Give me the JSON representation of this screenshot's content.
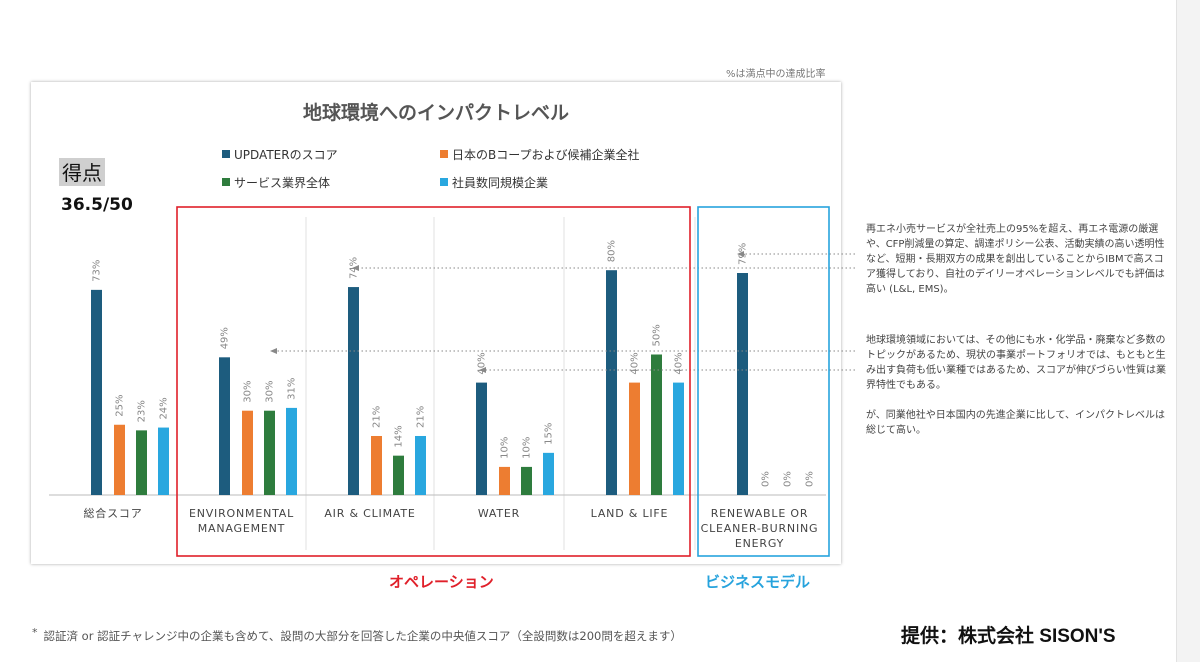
{
  "note_top": "%は満点中の達成比率",
  "chart_data": {
    "type": "bar",
    "title": "地球環境へのインパクトレベル",
    "score_label": "得点",
    "score_value": "36.5/50",
    "categories": [
      [
        "総合スコア"
      ],
      [
        "ENVIRONMENTAL",
        "MANAGEMENT"
      ],
      [
        "AIR & CLIMATE"
      ],
      [
        "WATER"
      ],
      [
        "LAND & LIFE"
      ],
      [
        "RENEWABLE OR",
        "CLEANER-BURNING",
        "ENERGY"
      ]
    ],
    "series": [
      {
        "name": "UPDATERのスコア",
        "color": "#1d5c7e",
        "values": [
          73,
          49,
          74,
          40,
          80,
          79
        ],
        "labels": [
          "73%",
          "49%",
          "74%",
          "40%",
          "80%",
          "79%"
        ]
      },
      {
        "name": "日本のBコープおよび候補企業全社",
        "color": "#ed7d31",
        "values": [
          25,
          30,
          21,
          10,
          40,
          0
        ],
        "labels": [
          "25%",
          "30%",
          "21%",
          "10%",
          "40%",
          "0%"
        ]
      },
      {
        "name": "サービス業界全体",
        "color": "#2e7c3d",
        "values": [
          23,
          30,
          14,
          10,
          50,
          0
        ],
        "labels": [
          "23%",
          "30%",
          "14%",
          "10%",
          "50%",
          "0%"
        ]
      },
      {
        "name": "社員数同規模企業",
        "color": "#29a7df",
        "values": [
          24,
          31,
          21,
          15,
          40,
          0
        ],
        "labels": [
          "24%",
          "31%",
          "21%",
          "15%",
          "40%",
          "0%"
        ]
      }
    ],
    "ylim": [
      0,
      100
    ],
    "legend_position": "top"
  },
  "groups": {
    "operations_label": "オペレーション",
    "operations_color": "#e0202a",
    "business_label": "ビジネスモデル",
    "business_color": "#27a3dd"
  },
  "annotations": {
    "renewable_note": "再エネ小売サービスが全社売上の95%を超え、再エネ電源の厳選や、CFP削減量の算定、調達ポリシー公表、活動実績の高い透明性など、短期・長期双方の成果を創出していることからIBMで高スコア獲得しており、自社のデイリーオペレーションレベルでも評価は高い (L&L, EMS)。",
    "environment_note": "地球環境領域においては、その他にも水・化学品・廃棄など多数のトピックがあるため、現状の事業ポートフォリオでは、もともと生み出す負荷も低い業種ではあるため、スコアが伸びづらい性質は業界特性でもある。",
    "summary_note": "が、同業他社や日本国内の先進企業に比して、インパクトレベルは総じて高い。"
  },
  "footnote_mark": "*",
  "footnote": "認証済 or 認証チャレンジ中の企業も含めて、設問の大部分を回答した企業の中央値スコア（全設問数は200問を超えます）",
  "credit": "提供：株式会社 SISON'S"
}
